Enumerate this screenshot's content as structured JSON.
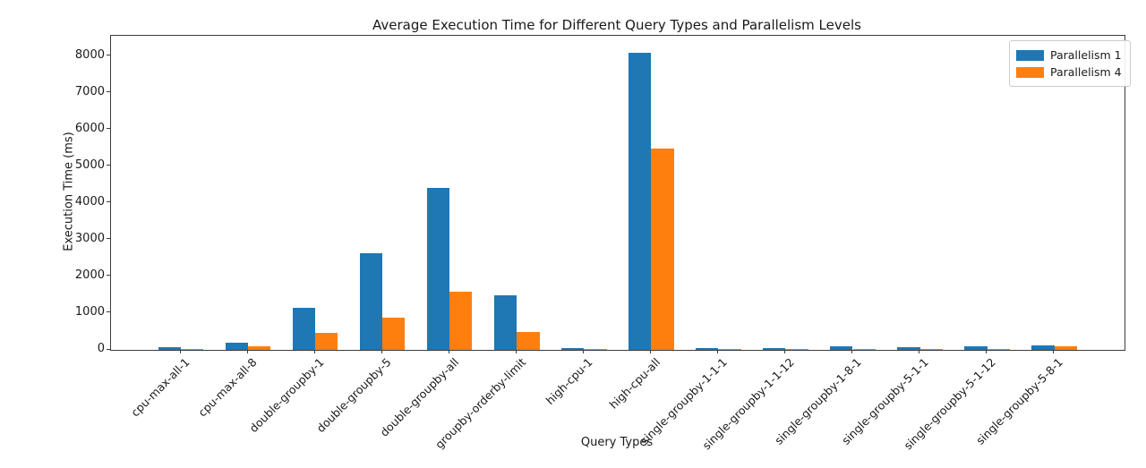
{
  "figure": {
    "title": "Average Execution Time for Different Query Types and Parallelism Levels",
    "xlabel": "Query Types",
    "ylabel": "Execution Time (ms)"
  },
  "chart_data": {
    "type": "bar",
    "title": "Average Execution Time for Different Query Types and Parallelism Levels",
    "xlabel": "Query Types",
    "ylabel": "Execution Time (ms)",
    "categories": [
      "cpu-max-all-1",
      "cpu-max-all-8",
      "double-groupby-1",
      "double-groupby-5",
      "double-groupby-all",
      "groupby-orderby-limit",
      "high-cpu-1",
      "high-cpu-all",
      "single-groupby-1-1-1",
      "single-groupby-1-1-12",
      "single-groupby-1-8-1",
      "single-groupby-5-1-1",
      "single-groupby-5-1-12",
      "single-groupby-5-8-1"
    ],
    "series": [
      {
        "name": "Parallelism 1",
        "color": "#1f77b4",
        "values": [
          70,
          200,
          1135,
          2640,
          4420,
          1490,
          55,
          8080,
          40,
          50,
          100,
          80,
          90,
          125
        ]
      },
      {
        "name": "Parallelism 4",
        "color": "#ff7f0e",
        "values": [
          30,
          110,
          460,
          880,
          1580,
          490,
          25,
          5480,
          15,
          20,
          35,
          25,
          35,
          95
        ]
      }
    ],
    "ylim": [
      0,
      8550
    ],
    "yticks": [
      0,
      1000,
      2000,
      3000,
      4000,
      5000,
      6000,
      7000,
      8000
    ],
    "grid": false,
    "legend_position": "upper right",
    "xtick_rotation": 45
  }
}
